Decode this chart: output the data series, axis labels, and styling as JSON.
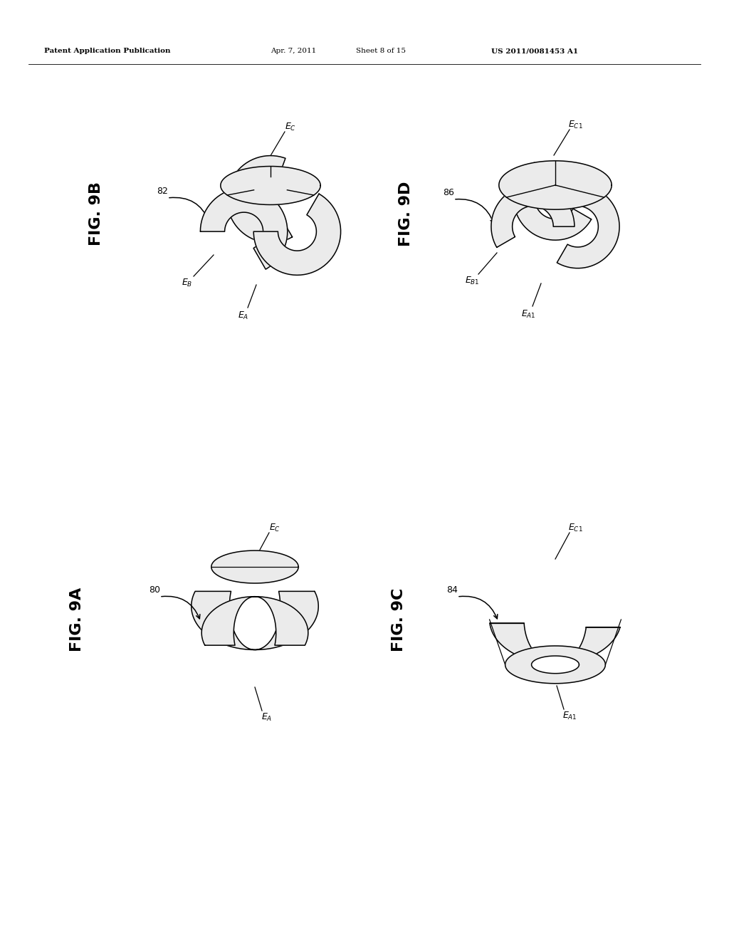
{
  "background_color": "#ffffff",
  "page_width": 10.24,
  "page_height": 13.2,
  "header_left": "Patent Application Publication",
  "header_mid1": "Apr. 7, 2011",
  "header_mid2": "Sheet 8 of 15",
  "header_right": "US 2011/0081453 A1",
  "line_color": "#000000",
  "fill_gray": "#ebebeb",
  "fill_white": "#ffffff",
  "lw": 1.1
}
